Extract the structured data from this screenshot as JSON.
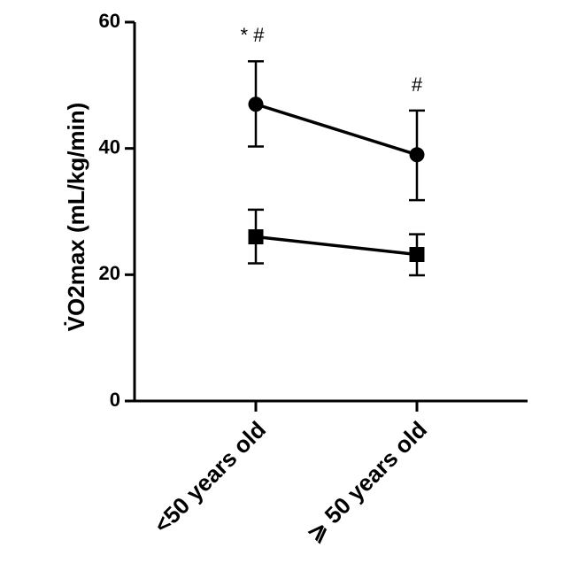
{
  "chart_data": {
    "type": "line",
    "ylabel": "V̇O2max (mL/kg/min)",
    "ylim": [
      0,
      60
    ],
    "yticks": [
      "0",
      "20",
      "40",
      "60"
    ],
    "categories": [
      "<50 years old",
      "⩾ 50 years old"
    ],
    "series": [
      {
        "marker": "circle",
        "values": [
          47,
          39
        ],
        "error": [
          [
            40.3,
            53.8
          ],
          [
            31.8,
            46.0
          ]
        ],
        "annotations": [
          "* #",
          "#"
        ]
      },
      {
        "marker": "square",
        "values": [
          26,
          23.2
        ],
        "error": [
          [
            21.8,
            30.3
          ],
          [
            19.9,
            26.4
          ]
        ]
      }
    ],
    "grid": false,
    "colors": {
      "series": "#000000"
    }
  }
}
